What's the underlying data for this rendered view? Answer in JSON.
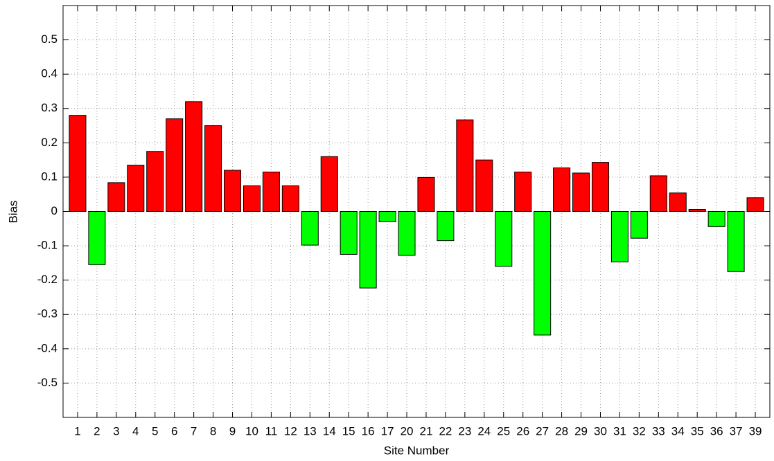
{
  "chart_data": {
    "type": "bar",
    "x_label": "Site Number",
    "y_label": "Bias",
    "categories": [
      "1",
      "2",
      "3",
      "4",
      "5",
      "6",
      "7",
      "8",
      "9",
      "10",
      "11",
      "12",
      "13",
      "14",
      "15",
      "16",
      "17",
      "20",
      "21",
      "22",
      "23",
      "24",
      "25",
      "26",
      "27",
      "28",
      "29",
      "30",
      "31",
      "32",
      "33",
      "34",
      "35",
      "36",
      "37",
      "39"
    ],
    "values": [
      0.28,
      -0.155,
      0.084,
      0.135,
      0.175,
      0.27,
      0.32,
      0.25,
      0.12,
      0.075,
      0.115,
      0.075,
      -0.098,
      0.16,
      -0.125,
      -0.223,
      -0.03,
      -0.128,
      0.099,
      -0.085,
      0.267,
      0.15,
      -0.16,
      0.115,
      -0.36,
      0.127,
      0.112,
      0.143,
      -0.147,
      -0.078,
      0.104,
      0.054,
      0.006,
      -0.044,
      -0.175,
      0.04
    ],
    "colors": {
      "positive": "#ff0000",
      "negative": "#00ff00"
    },
    "ylim": [
      -0.6,
      0.6
    ],
    "yticks": [
      -0.5,
      -0.4,
      -0.3,
      -0.2,
      -0.1,
      0,
      0.1,
      0.2,
      0.3,
      0.4,
      0.5
    ],
    "grid": true
  }
}
